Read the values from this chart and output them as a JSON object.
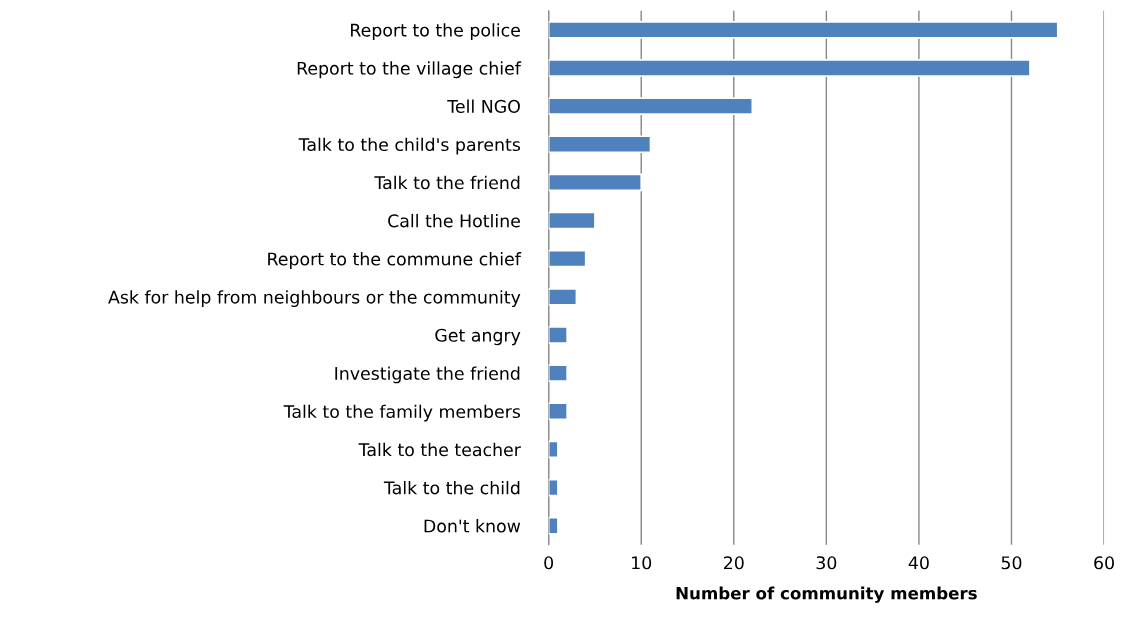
{
  "chart_data": {
    "type": "bar",
    "orientation": "horizontal",
    "xlabel": "Number of community members",
    "categories": [
      "Report to the police",
      "Report to the village chief",
      "Tell NGO",
      "Talk to the child's parents",
      "Talk to the friend",
      "Call the Hotline",
      "Report to the commune chief",
      "Ask for help from neighbours or the community",
      "Get angry",
      "Investigate the friend",
      "Talk to the family members",
      "Talk to the teacher",
      "Talk to the child",
      "Don't know"
    ],
    "values": [
      55,
      52,
      22,
      11,
      10,
      5,
      4,
      3,
      2,
      2,
      2,
      1,
      1,
      1
    ],
    "color": "#4f81bd",
    "xlim": [
      0,
      60
    ],
    "xticks": [
      0,
      10,
      20,
      30,
      40,
      50,
      60
    ],
    "grid": "x",
    "legend": false
  }
}
